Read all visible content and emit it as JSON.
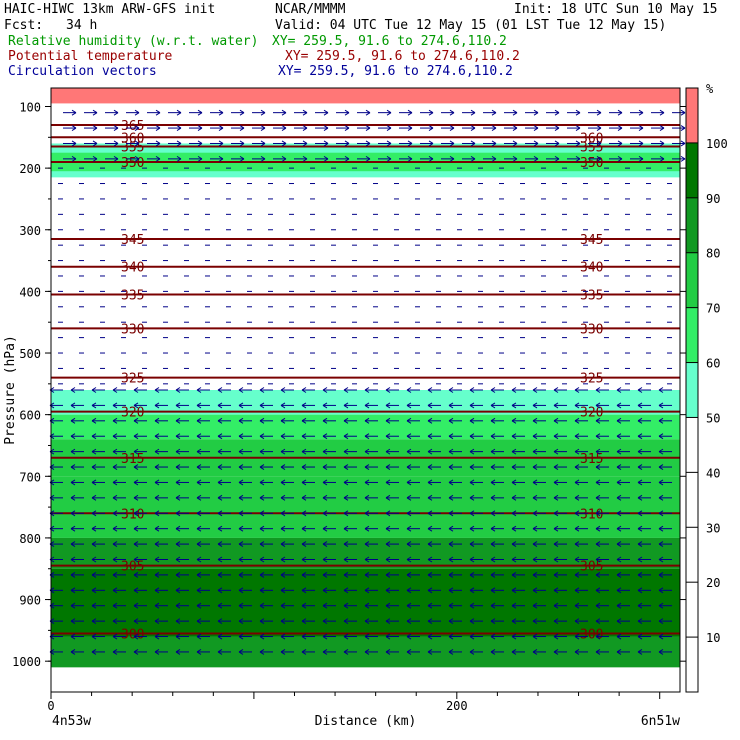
{
  "header": {
    "model": "HAIC-HIWC 13km ARW-GFS init",
    "source": "NCAR/MMMM",
    "init": "Init: 18 UTC Sun 10 May 15",
    "fcst_label": "Fcst:",
    "fcst_value": "34 h",
    "valid": "Valid: 04 UTC Tue 12 May 15 (01 LST Tue 12 May 15)",
    "fields": [
      {
        "name": "Relative humidity (w.r.t. water)",
        "xy": "XY= 259.5, 91.6 to 274.6,110.2",
        "color": "#009900"
      },
      {
        "name": "Potential temperature",
        "xy": "XY= 259.5, 91.6 to 274.6,110.2",
        "color": "#990000"
      },
      {
        "name": "Circulation vectors",
        "xy": "XY= 259.5, 91.6 to 274.6,110.2",
        "color": "#000099"
      }
    ]
  },
  "chart_data": {
    "type": "heatmap",
    "subtype": "vertical cross-section",
    "xlabel": "Distance (km)",
    "ylabel": "Pressure (hPa)",
    "x_ticks": [
      "0",
      "200"
    ],
    "xlim": [
      0,
      310
    ],
    "ylim": [
      1050,
      70
    ],
    "y_ticks": [
      100,
      200,
      300,
      400,
      500,
      600,
      700,
      800,
      900,
      1000
    ],
    "endpoint_labels": {
      "left": "4n53w",
      "right": "6n51w"
    },
    "colorbar": {
      "unit": "%",
      "ticks": [
        10,
        20,
        30,
        40,
        50,
        60,
        70,
        80,
        90,
        100
      ],
      "bands": [
        {
          "range": [
            50,
            60
          ],
          "color": "#66ffcc"
        },
        {
          "range": [
            60,
            70
          ],
          "color": "#33ee66"
        },
        {
          "range": [
            70,
            80
          ],
          "color": "#22cc44"
        },
        {
          "range": [
            80,
            90
          ],
          "color": "#119922"
        },
        {
          "range": [
            90,
            100
          ],
          "color": "#007700"
        },
        {
          "range": [
            100,
            110
          ],
          "color": "#ff7777"
        }
      ]
    },
    "rh_layers": [
      {
        "p_top": 560,
        "p_bot": 600,
        "rh": 55
      },
      {
        "p_top": 600,
        "p_bot": 640,
        "rh": 65
      },
      {
        "p_top": 640,
        "p_bot": 700,
        "rh": 70
      },
      {
        "p_top": 700,
        "p_bot": 800,
        "rh": 75
      },
      {
        "p_top": 800,
        "p_bot": 850,
        "rh": 80
      },
      {
        "p_top": 850,
        "p_bot": 960,
        "rh": 92
      },
      {
        "p_top": 960,
        "p_bot": 1010,
        "rh": 85
      },
      {
        "p_top": 160,
        "p_bot": 215,
        "rh": 55
      },
      {
        "p_top": 175,
        "p_bot": 205,
        "rh": 65
      },
      {
        "p_top": 70,
        "p_bot": 95,
        "rh": 105
      }
    ],
    "theta_contours": [
      {
        "value": 365,
        "p": 130,
        "label_left": "365"
      },
      {
        "value": 360,
        "p": 150,
        "label_left": "360",
        "label_right": "360"
      },
      {
        "value": 355,
        "p": 165,
        "label_left": "355",
        "label_right": "355"
      },
      {
        "value": 350,
        "p": 190,
        "label_left": "350",
        "label_right": "350"
      },
      {
        "value": 345,
        "p": 315,
        "label_left": "345",
        "label_right": "345"
      },
      {
        "value": 340,
        "p": 360,
        "label_left": "340",
        "label_right": "340"
      },
      {
        "value": 335,
        "p": 405,
        "label_left": "335",
        "label_right": "335"
      },
      {
        "value": 330,
        "p": 460,
        "label_left": "330",
        "label_right": "330"
      },
      {
        "value": 325,
        "p": 540,
        "label_left": "325",
        "label_right": "325"
      },
      {
        "value": 320,
        "p": 595,
        "label_left": "320",
        "label_right": "320"
      },
      {
        "value": 315,
        "p": 670,
        "label_left": "315",
        "label_right": "315"
      },
      {
        "value": 310,
        "p": 760,
        "label_left": "310",
        "label_right": "310"
      },
      {
        "value": 305,
        "p": 845,
        "label_left": "305",
        "label_right": "305"
      },
      {
        "value": 300,
        "p": 955,
        "label_left": "300",
        "label_right": "300"
      }
    ],
    "wind_layers": [
      {
        "p_top": 110,
        "p_bot": 200,
        "direction": "east"
      },
      {
        "p_top": 200,
        "p_bot": 560,
        "direction": "weak"
      },
      {
        "p_top": 560,
        "p_bot": 990,
        "direction": "west"
      }
    ]
  }
}
